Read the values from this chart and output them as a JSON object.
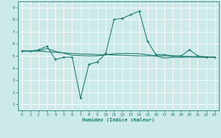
{
  "xlabel": "Humidex (Indice chaleur)",
  "bg_color": "#cceaea",
  "grid_color": "#ffffff",
  "line_color": "#1a7a6e",
  "xlim": [
    -0.5,
    23.5
  ],
  "ylim": [
    0.5,
    9.5
  ],
  "yticks": [
    1,
    2,
    3,
    4,
    5,
    6,
    7,
    8,
    9
  ],
  "xticks": [
    0,
    1,
    2,
    3,
    4,
    5,
    6,
    7,
    8,
    9,
    10,
    11,
    12,
    13,
    14,
    15,
    16,
    17,
    18,
    19,
    20,
    21,
    22,
    23
  ],
  "line1_x": [
    0,
    1,
    2,
    3,
    4,
    5,
    6,
    7,
    8,
    9,
    10,
    11,
    12,
    13,
    14,
    15,
    16,
    17,
    18,
    19,
    20,
    21,
    22,
    23
  ],
  "line1_y": [
    5.4,
    5.4,
    5.4,
    5.35,
    5.3,
    5.25,
    5.2,
    5.15,
    5.15,
    5.1,
    5.1,
    5.08,
    5.05,
    5.02,
    5.0,
    5.0,
    5.0,
    5.0,
    4.98,
    4.97,
    4.96,
    4.95,
    4.93,
    4.92
  ],
  "line2_x": [
    0,
    1,
    2,
    3,
    4,
    5,
    6,
    7,
    8,
    9,
    10,
    11,
    12,
    13,
    14,
    15,
    16,
    17,
    18,
    19,
    20,
    21,
    22,
    23
  ],
  "line2_y": [
    5.4,
    5.4,
    5.5,
    5.8,
    4.7,
    4.9,
    4.9,
    1.5,
    4.3,
    4.5,
    5.2,
    8.0,
    8.1,
    8.4,
    8.7,
    6.2,
    5.1,
    5.1,
    5.0,
    5.0,
    5.5,
    5.0,
    4.9,
    4.9
  ],
  "line3_x": [
    0,
    1,
    2,
    3,
    4,
    5,
    6,
    7,
    8,
    9,
    10,
    11,
    12,
    13,
    14,
    15,
    16,
    17,
    18,
    19,
    20,
    21,
    22,
    23
  ],
  "line3_y": [
    5.4,
    5.4,
    5.42,
    5.6,
    5.38,
    5.22,
    5.05,
    5.02,
    5.0,
    5.0,
    5.08,
    5.18,
    5.2,
    5.2,
    5.18,
    5.1,
    5.0,
    4.82,
    4.88,
    4.88,
    4.9,
    4.88,
    4.88,
    4.88
  ]
}
